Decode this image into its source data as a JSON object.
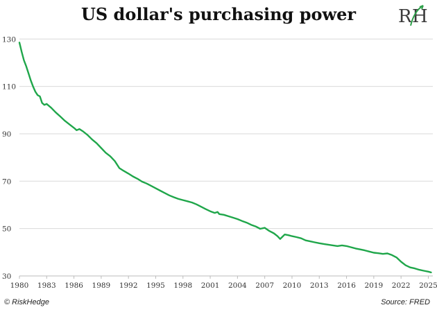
{
  "header": {
    "title": "US dollar's purchasing power"
  },
  "footer": {
    "copyright": "© RiskHedge",
    "source": "Source: FRED"
  },
  "colors": {
    "line": "#1fa64a",
    "logo": "#3a3a3a",
    "logo_accent": "#2ea04a"
  },
  "logo": {
    "icon": "riskhedge-logo"
  },
  "chart_data": {
    "type": "line",
    "title": "US dollar's purchasing power",
    "xlabel": "",
    "ylabel": "",
    "xlim": [
      1980,
      2025.5
    ],
    "ylim": [
      30,
      133
    ],
    "grid": true,
    "yticks": [
      30,
      50,
      70,
      90,
      110,
      130
    ],
    "xticks": [
      1980,
      1983,
      1986,
      1989,
      1992,
      1995,
      1998,
      2001,
      2004,
      2007,
      2010,
      2013,
      2016,
      2019,
      2022,
      2025
    ],
    "series": [
      {
        "values": [
          [
            1980.0,
            128.5
          ],
          [
            1980.25,
            124.5
          ],
          [
            1980.5,
            121.0
          ],
          [
            1980.75,
            118.5
          ],
          [
            1981.0,
            115.5
          ],
          [
            1981.25,
            112.5
          ],
          [
            1981.5,
            110.0
          ],
          [
            1981.75,
            107.8
          ],
          [
            1982.0,
            106.3
          ],
          [
            1982.25,
            105.8
          ],
          [
            1982.5,
            103.0
          ],
          [
            1982.75,
            102.2
          ],
          [
            1983.0,
            102.6
          ],
          [
            1983.5,
            101.0
          ],
          [
            1984.0,
            99.0
          ],
          [
            1984.5,
            97.3
          ],
          [
            1985.0,
            95.5
          ],
          [
            1985.5,
            94.0
          ],
          [
            1986.0,
            92.5
          ],
          [
            1986.3,
            91.5
          ],
          [
            1986.6,
            92.0
          ],
          [
            1987.0,
            91.0
          ],
          [
            1987.5,
            89.5
          ],
          [
            1988.0,
            87.6
          ],
          [
            1988.5,
            86.0
          ],
          [
            1989.0,
            84.0
          ],
          [
            1989.5,
            82.0
          ],
          [
            1990.0,
            80.5
          ],
          [
            1990.5,
            78.5
          ],
          [
            1991.0,
            75.5
          ],
          [
            1991.5,
            74.3
          ],
          [
            1992.0,
            73.2
          ],
          [
            1992.5,
            72.0
          ],
          [
            1993.0,
            71.0
          ],
          [
            1993.5,
            69.8
          ],
          [
            1994.0,
            69.0
          ],
          [
            1994.5,
            68.0
          ],
          [
            1995.0,
            67.0
          ],
          [
            1995.5,
            66.0
          ],
          [
            1996.0,
            65.0
          ],
          [
            1996.5,
            64.0
          ],
          [
            1997.0,
            63.2
          ],
          [
            1997.5,
            62.5
          ],
          [
            1998.0,
            62.0
          ],
          [
            1998.5,
            61.5
          ],
          [
            1999.0,
            61.0
          ],
          [
            1999.5,
            60.2
          ],
          [
            2000.0,
            59.2
          ],
          [
            2000.5,
            58.2
          ],
          [
            2001.0,
            57.3
          ],
          [
            2001.5,
            56.6
          ],
          [
            2001.8,
            57.0
          ],
          [
            2002.0,
            56.1
          ],
          [
            2002.5,
            55.8
          ],
          [
            2003.0,
            55.2
          ],
          [
            2003.5,
            54.6
          ],
          [
            2004.0,
            54.0
          ],
          [
            2004.5,
            53.2
          ],
          [
            2005.0,
            52.5
          ],
          [
            2005.5,
            51.6
          ],
          [
            2006.0,
            50.9
          ],
          [
            2006.5,
            49.9
          ],
          [
            2007.0,
            50.3
          ],
          [
            2007.5,
            49.0
          ],
          [
            2008.0,
            48.0
          ],
          [
            2008.4,
            46.8
          ],
          [
            2008.7,
            45.6
          ],
          [
            2008.9,
            46.4
          ],
          [
            2009.2,
            47.5
          ],
          [
            2009.6,
            47.2
          ],
          [
            2010.0,
            46.8
          ],
          [
            2010.5,
            46.4
          ],
          [
            2011.0,
            45.9
          ],
          [
            2011.5,
            45.0
          ],
          [
            2012.0,
            44.6
          ],
          [
            2012.5,
            44.2
          ],
          [
            2013.0,
            43.8
          ],
          [
            2013.5,
            43.5
          ],
          [
            2014.0,
            43.2
          ],
          [
            2014.5,
            42.9
          ],
          [
            2015.0,
            42.6
          ],
          [
            2015.5,
            42.9
          ],
          [
            2016.0,
            42.6
          ],
          [
            2016.5,
            42.1
          ],
          [
            2017.0,
            41.6
          ],
          [
            2017.5,
            41.2
          ],
          [
            2018.0,
            40.8
          ],
          [
            2018.5,
            40.3
          ],
          [
            2019.0,
            39.8
          ],
          [
            2019.5,
            39.6
          ],
          [
            2020.0,
            39.3
          ],
          [
            2020.5,
            39.5
          ],
          [
            2021.0,
            38.8
          ],
          [
            2021.5,
            37.8
          ],
          [
            2022.0,
            36.0
          ],
          [
            2022.5,
            34.5
          ],
          [
            2023.0,
            33.6
          ],
          [
            2023.5,
            33.2
          ],
          [
            2024.0,
            32.6
          ],
          [
            2024.5,
            32.2
          ],
          [
            2025.0,
            31.8
          ],
          [
            2025.3,
            31.5
          ]
        ]
      }
    ]
  }
}
